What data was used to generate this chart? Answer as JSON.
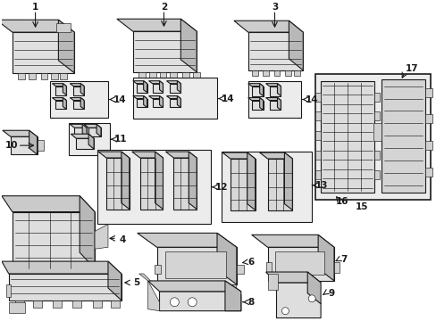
{
  "background": "#ffffff",
  "line_color": "#1a1a1a",
  "fig_width": 4.89,
  "fig_height": 3.6,
  "dpi": 100,
  "lw_main": 0.8,
  "lw_thin": 0.45,
  "fs_label": 7.5,
  "gray_light": "#e8e8e8",
  "gray_mid": "#d0d0d0",
  "gray_dark": "#b0b0b0",
  "box_fill": "#ececec"
}
